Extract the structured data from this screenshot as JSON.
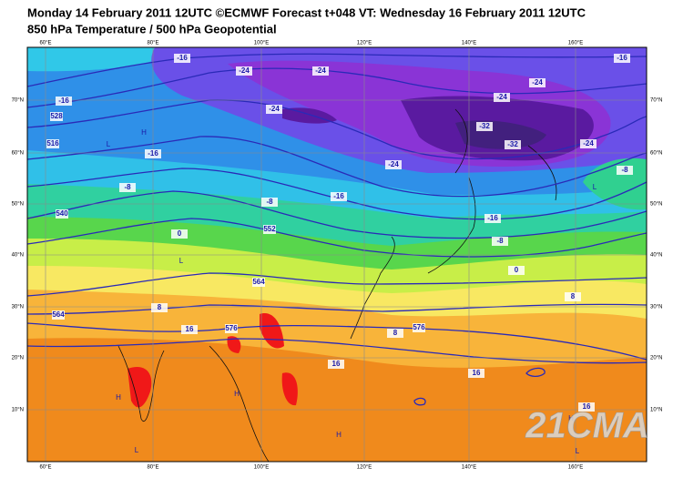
{
  "header": {
    "title": "Monday 14 February 2011 12UTC ©ECMWF Forecast t+048 VT: Wednesday 16 February 2011 12UTC",
    "subtitle": "850 hPa Temperature / 500 hPa Geopotential"
  },
  "map": {
    "longitude_labels": [
      "60°E",
      "80°E",
      "100°E",
      "120°E",
      "140°E",
      "160°E"
    ],
    "latitude_labels": [
      "70°N",
      "60°N",
      "50°N",
      "40°N",
      "30°N",
      "20°N",
      "10°N"
    ],
    "contour_labels": [
      "-16",
      "-24",
      "-24",
      "-16",
      "-24",
      "-24",
      "-24",
      "-32",
      "-32",
      "-24",
      "-16",
      "-24",
      "-8",
      "-8",
      "-16",
      "-8",
      "-16",
      "-8",
      "0",
      "0",
      "8",
      "8",
      "8",
      "16",
      "16",
      "16",
      "-16",
      "528",
      "516",
      "540",
      "552",
      "564",
      "564",
      "576",
      "576",
      "16"
    ],
    "pressure_centers": [
      "H",
      "L",
      "L",
      "L",
      "H",
      "H",
      "L",
      "H",
      "L",
      "H"
    ]
  },
  "watermark": "21CMA"
}
